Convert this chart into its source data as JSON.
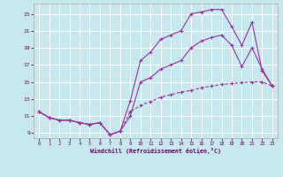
{
  "xlabel": "Windchill (Refroidissement éolien,°C)",
  "bg_color": "#c8e8f0",
  "grid_color": "#ffffff",
  "line_color": "#993399",
  "xlim_min": -0.5,
  "xlim_max": 23.5,
  "ylim_min": 8.4,
  "ylim_max": 24.2,
  "xticks": [
    0,
    1,
    2,
    3,
    4,
    5,
    6,
    7,
    8,
    9,
    10,
    11,
    12,
    13,
    14,
    15,
    16,
    17,
    18,
    19,
    20,
    21,
    22,
    23
  ],
  "yticks": [
    9,
    11,
    13,
    15,
    17,
    19,
    21,
    23
  ],
  "line1_x": [
    0,
    1,
    2,
    3,
    4,
    5,
    6,
    7,
    8,
    9,
    10,
    11,
    12,
    13,
    14,
    15,
    16,
    17,
    18,
    19,
    20,
    21,
    22,
    23
  ],
  "line1_y": [
    11.5,
    10.8,
    10.5,
    10.5,
    10.2,
    10.0,
    10.2,
    8.8,
    9.2,
    12.8,
    17.5,
    18.5,
    20.0,
    20.5,
    21.0,
    23.0,
    23.2,
    23.5,
    23.5,
    21.5,
    19.3,
    22.0,
    16.3,
    14.5
  ],
  "line2_x": [
    0,
    1,
    2,
    3,
    4,
    5,
    6,
    7,
    8,
    9,
    10,
    11,
    12,
    13,
    14,
    15,
    16,
    17,
    18,
    19,
    20,
    21,
    22,
    23
  ],
  "line2_y": [
    11.5,
    10.8,
    10.5,
    10.5,
    10.2,
    10.0,
    10.2,
    8.8,
    9.2,
    11.0,
    15.0,
    15.5,
    16.5,
    17.0,
    17.5,
    19.0,
    19.8,
    20.2,
    20.5,
    19.3,
    16.8,
    19.0,
    16.5,
    14.5
  ],
  "line3_x": [
    0,
    1,
    2,
    3,
    4,
    5,
    6,
    7,
    8,
    9,
    10,
    11,
    12,
    13,
    14,
    15,
    16,
    17,
    18,
    19,
    20,
    21,
    22,
    23
  ],
  "line3_y": [
    11.5,
    10.8,
    10.5,
    10.5,
    10.2,
    10.0,
    10.2,
    8.8,
    9.2,
    11.5,
    12.2,
    12.7,
    13.2,
    13.5,
    13.8,
    14.0,
    14.3,
    14.5,
    14.7,
    14.8,
    14.9,
    15.0,
    15.0,
    14.5
  ]
}
